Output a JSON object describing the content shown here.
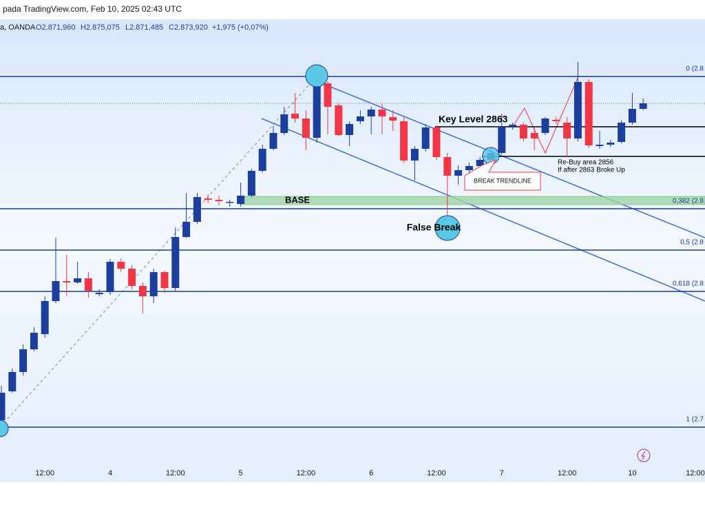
{
  "header": {
    "source": "pada TradingView.com, Feb 10, 2025 02:43 UTC",
    "symbol": "a, OANDA",
    "open": "O2.871,960",
    "high": "H2.875,075",
    "low": "L2.871,485",
    "close": "C2.873,920",
    "change": "+1,975 (+0,07%)"
  },
  "chart_data": {
    "type": "candlestick",
    "open": [
      2782,
      2790.4,
      2796,
      2802.6,
      2807,
      2816.6,
      2822.4,
      2822,
      2823.2,
      2818.6,
      2819.2,
      2828,
      2826,
      2821,
      2818,
      2825,
      2820.4,
      2835.2,
      2839.6,
      2846.4,
      2846,
      2845.2,
      2844.8,
      2847.2,
      2854.4,
      2860.8,
      2865.4,
      2871,
      2869.6,
      2864,
      2879.8,
      2873.4,
      2864.8,
      2868.8,
      2870.2,
      2872.2,
      2870,
      2868.8,
      2857.4,
      2860.8,
      2867,
      2858.4,
      2853,
      2854.6,
      2855.8,
      2857.6,
      2859.6,
      2867.2,
      2867.8,
      2865.4,
      2865.4,
      2869.2,
      2868.4,
      2863.8,
      2880.2,
      2861.6,
      2862,
      2862.8,
      2868.4,
      2872.4
    ],
    "high": [
      2792,
      2797,
      2804,
      2809,
      2818,
      2835,
      2830,
      2828,
      2825,
      2820,
      2828.8,
      2829,
      2827,
      2822,
      2826,
      2825.4,
      2838,
      2848,
      2848,
      2847.6,
      2847.2,
      2846,
      2851,
      2855,
      2862,
      2867.4,
      2873,
      2877,
      2872,
      2881,
      2880.4,
      2874,
      2868.8,
      2872,
      2873,
      2874,
      2872,
      2870,
      2861.6,
      2868,
      2867.6,
      2859.6,
      2856,
      2856.8,
      2858.4,
      2861,
      2871,
      2868.4,
      2868.4,
      2867,
      2870,
      2870,
      2870,
      2886,
      2881,
      2866,
      2863.4,
      2869,
      2877,
      2875.4
    ],
    "low": [
      2781,
      2790,
      2795,
      2802,
      2806,
      2816,
      2818,
      2821.6,
      2817.6,
      2818,
      2818.4,
      2825,
      2820,
      2813,
      2816,
      2819,
      2819.6,
      2835,
      2839,
      2845,
      2844.4,
      2844,
      2844,
      2846.8,
      2854,
      2860.4,
      2864.8,
      2868.4,
      2860.4,
      2862.6,
      2865,
      2864.4,
      2861.6,
      2868,
      2865,
      2865,
      2866,
      2856.8,
      2851.6,
      2860,
      2857.6,
      2838,
      2850.4,
      2853.6,
      2855,
      2857,
      2859.2,
      2866.4,
      2863,
      2860.4,
      2864.8,
      2868,
      2858.4,
      2863,
      2861,
      2860.8,
      2861.4,
      2862.4,
      2867.8,
      2872
    ],
    "close": [
      2790,
      2796,
      2802.6,
      2807.4,
      2816.6,
      2822.4,
      2822,
      2823.2,
      2819.6,
      2819,
      2828,
      2826,
      2821,
      2818,
      2825,
      2820.4,
      2835.2,
      2839.6,
      2846.8,
      2846,
      2845.6,
      2845.4,
      2847.2,
      2854.4,
      2860.8,
      2865.4,
      2870.8,
      2869.6,
      2864,
      2879.8,
      2873,
      2864.8,
      2868,
      2870.2,
      2872.2,
      2870.2,
      2869,
      2857.4,
      2860.8,
      2867,
      2858.4,
      2853,
      2854.6,
      2855.8,
      2857.6,
      2859.6,
      2867.2,
      2867.8,
      2863.8,
      2863.8,
      2869.6,
      2868.8,
      2863.8,
      2880.2,
      2861.8,
      2862,
      2862.6,
      2868.4,
      2872.4,
      2874
    ],
    "up_color": "#1c3f9e",
    "down_color": "#f23645",
    "ylim": [
      2768,
      2894
    ],
    "xticks": [
      {
        "value": 4,
        "label": "12:00"
      },
      {
        "value": 10,
        "label": "4"
      },
      {
        "value": 16,
        "label": "12:00"
      },
      {
        "value": 22,
        "label": "5"
      },
      {
        "value": 28,
        "label": "12:00"
      },
      {
        "value": 34,
        "label": "6"
      },
      {
        "value": 40,
        "label": "12:00"
      },
      {
        "value": 46,
        "label": "7"
      },
      {
        "value": 52,
        "label": "12:00"
      },
      {
        "value": 58,
        "label": "10"
      },
      {
        "value": 64,
        "label": "12:00"
      }
    ],
    "levels": [
      {
        "value": 2881.8,
        "label": "0 (2.8"
      },
      {
        "value": 2843.4,
        "label": "0,382 (2.8"
      },
      {
        "value": 2831.4,
        "label": "0,5 (2.8"
      },
      {
        "value": 2819.4,
        "label": "0,618 (2.8"
      },
      {
        "value": 2780,
        "label": "1 (2.7"
      }
    ],
    "key_level": {
      "value": 2867.2,
      "label": "Key Level 2863"
    },
    "rebuy_level": {
      "value": 2858.6,
      "label": "Re-Buy area 2856",
      "note": "If after 2863 Broke Up"
    },
    "base_zone": {
      "high": 2847,
      "low": 2844.6,
      "label": "BASE"
    },
    "last_price": 2874,
    "annotations": {
      "false_break": "False Break",
      "break_trendline": "BREAK TRENDLINE"
    }
  }
}
